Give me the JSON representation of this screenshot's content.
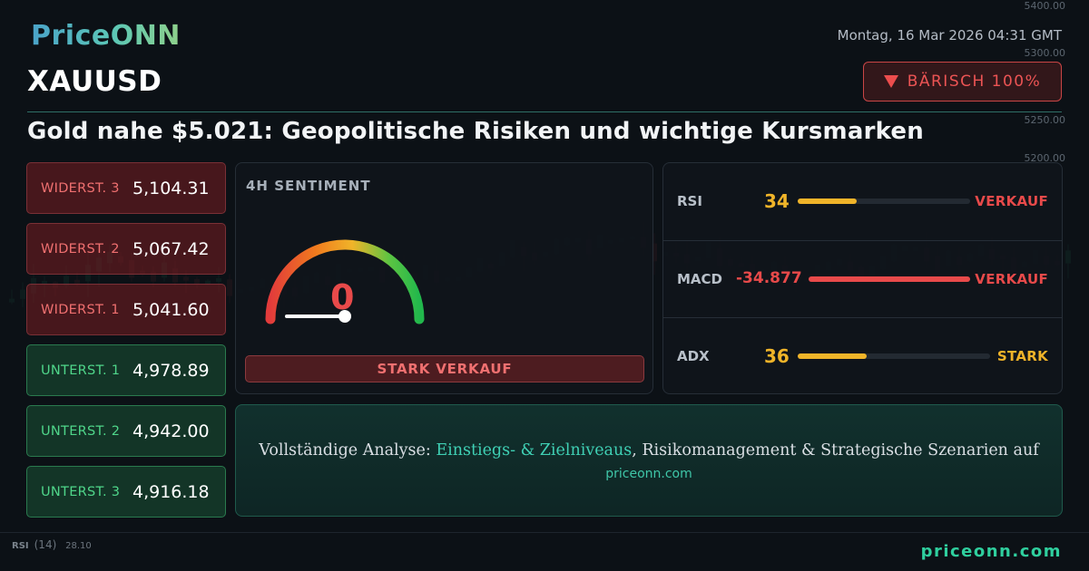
{
  "brand": {
    "logo": "PriceONN"
  },
  "header": {
    "datetime": "Montag, 16 Mar 2026 04:31 GMT",
    "symbol": "XAUUSD",
    "badge": {
      "label": "BÄRISCH 100%",
      "icon": "triangle-down-icon",
      "color": "#ec5454"
    }
  },
  "headline": "Gold nahe $5.021: Geopolitische Risiken und wichtige Kursmarken",
  "levels": [
    {
      "label": "WIDERST. 3",
      "value": "5,104.31",
      "kind": "resistance"
    },
    {
      "label": "WIDERST. 2",
      "value": "5,067.42",
      "kind": "resistance"
    },
    {
      "label": "WIDERST. 1",
      "value": "5,041.60",
      "kind": "resistance"
    },
    {
      "label": "UNTERST. 1",
      "value": "4,978.89",
      "kind": "support"
    },
    {
      "label": "UNTERST. 2",
      "value": "4,942.00",
      "kind": "support"
    },
    {
      "label": "UNTERST. 3",
      "value": "4,916.18",
      "kind": "support"
    }
  ],
  "sentiment": {
    "title": "4H SENTIMENT",
    "gauge_value": "0",
    "gauge_fraction": 0,
    "signal": "STARK VERKAUF"
  },
  "indicators": [
    {
      "name": "RSI",
      "value": "34",
      "fill": 0.34,
      "signal": "VERKAUF",
      "value_color": "#f0b429",
      "bar_color": "#f0b429",
      "signal_color": "#e84a4a"
    },
    {
      "name": "MACD",
      "value": "-34.877",
      "fill": 1.0,
      "signal": "VERKAUF",
      "value_color": "#e84a4a",
      "bar_color": "#e84a4a",
      "signal_color": "#e84a4a"
    },
    {
      "name": "ADX",
      "value": "36",
      "fill": 0.36,
      "signal": "STARK",
      "value_color": "#f0b429",
      "bar_color": "#f0b429",
      "signal_color": "#f0b429"
    }
  ],
  "cta": {
    "prefix": "Vollständige Analyse: ",
    "highlight": "Einstiegs- & Zielniveaus",
    "suffix": ", Risikomanagement & Strategische Szenarien auf",
    "link": "priceonn.com"
  },
  "background": {
    "rsi_label": "RSI",
    "rsi_period": "(14)",
    "rsi_values": "28.10",
    "price_scale": [
      "5400.00",
      "5300.00",
      "5250.00",
      "5200.00"
    ]
  },
  "footer": {
    "url": "priceonn.com"
  },
  "colors": {
    "bullish": "#4fd68a",
    "bearish": "#f07070",
    "accent": "#3fd0b4"
  }
}
